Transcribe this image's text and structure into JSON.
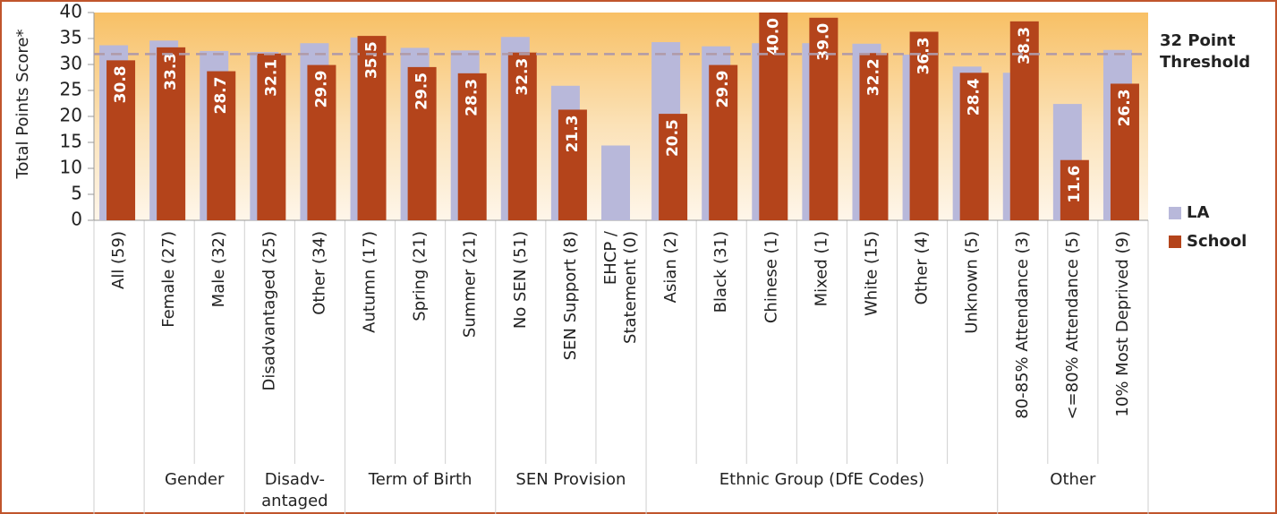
{
  "chart_data": {
    "type": "bar",
    "y_label": "Total Points Score*",
    "categories": [
      "All (59)",
      "Female (27)",
      "Male (32)",
      "Disadvantaged (25)",
      "Other (34)",
      "Autumn (17)",
      "Spring (21)",
      "Summer (21)",
      "No SEN (51)",
      "SEN Support (8)",
      "EHCP /\nStatement (0)",
      "Asian (2)",
      "Black (31)",
      "Chinese (1)",
      "Mixed (1)",
      "White (15)",
      "Other (4)",
      "Unknown (5)",
      "80-85% Attendance (3)",
      "<=80% Attendance (5)",
      "10% Most Deprived (9)"
    ],
    "groups": [
      {
        "label": "Gender",
        "start": 1,
        "span": 2
      },
      {
        "label": "Disadv-\nantaged",
        "start": 3,
        "span": 2
      },
      {
        "label": "Term of Birth",
        "start": 5,
        "span": 3
      },
      {
        "label": "SEN Provision",
        "start": 8,
        "span": 3
      },
      {
        "label": "Ethnic Group (DfE Codes)",
        "start": 11,
        "span": 7
      },
      {
        "label": "Other",
        "start": 18,
        "span": 3
      }
    ],
    "series": [
      {
        "name": "LA",
        "color": "#b8b8da",
        "values": [
          33.7,
          34.6,
          32.6,
          32.4,
          34.1,
          35.2,
          33.2,
          32.7,
          35.3,
          25.9,
          14.4,
          34.3,
          33.5,
          34.1,
          34.1,
          34.0,
          31.9,
          29.6,
          28.4,
          22.4,
          32.8
        ]
      },
      {
        "name": "School",
        "color": "#b4441b",
        "values": [
          30.8,
          33.3,
          28.7,
          32.1,
          29.9,
          35.5,
          29.5,
          28.3,
          32.3,
          21.3,
          null,
          20.5,
          29.9,
          40,
          39,
          32.2,
          36.3,
          28.4,
          38.3,
          11.6,
          26.3
        ],
        "value_labels": [
          "30.8",
          "33.3",
          "28.7",
          "32.1",
          "29.9",
          "35.5",
          "29.5",
          "28.3",
          "32.3",
          "21.3",
          null,
          "20.5",
          "29.9",
          "40.0",
          "39.0",
          "32.2",
          "36.3",
          "28.4",
          "38.3",
          "11.6",
          "26.3"
        ]
      }
    ],
    "threshold": {
      "value": 32,
      "label": "32 Point\nThreshold"
    },
    "ylim": [
      0,
      40
    ],
    "yticks": [
      0,
      5,
      10,
      15,
      20,
      25,
      30,
      35,
      40
    ],
    "legend": "right"
  }
}
